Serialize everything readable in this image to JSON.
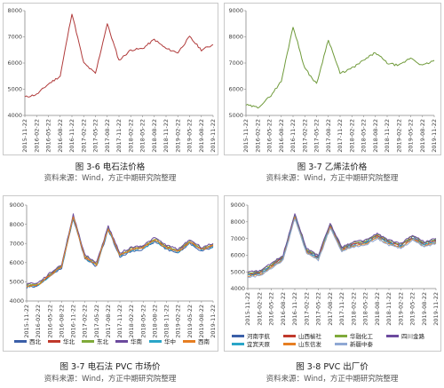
{
  "captions": {
    "c1": {
      "title": "图 3-6  电石法价格",
      "source": "资料来源：Wind，方正中期研究院整理"
    },
    "c2": {
      "title": "图 3-7  乙烯法价格",
      "source": "资料来源：Wind，方正中期研究院整理"
    },
    "c3": {
      "title": "图 3-7  电石法 PVC 市场价",
      "source": "资料来源：Wind，方正中期研究院整理"
    },
    "c4": {
      "title": "图 3-8 PVC 出厂价",
      "source": "资料来源：Wind，方正中期研究院整理"
    }
  },
  "colors": {
    "c1_line": "#b03a3a",
    "c2_line": "#6f9a3a"
  },
  "chart_data": [
    {
      "type": "line",
      "title": "",
      "ylim": [
        4000,
        8000
      ],
      "yticks": [
        4000,
        5000,
        6000,
        7000,
        8000
      ],
      "xticks": [
        "2015-11-22",
        "2016-02-22",
        "2016-05-22",
        "2016-08-22",
        "2016-11-22",
        "2017-02-22",
        "2017-05-22",
        "2017-08-22",
        "2017-11-22",
        "2018-02-22",
        "2018-05-22",
        "2018-08-22",
        "2018-11-22",
        "2019-02-22",
        "2019-05-22",
        "2019-08-22",
        "2019-11-22"
      ],
      "series": [
        {
          "values": [
            4700,
            4800,
            5200,
            5500,
            7900,
            6000,
            5600,
            7500,
            6100,
            6500,
            6550,
            6900,
            6550,
            6400,
            7000,
            6500,
            6700
          ]
        }
      ]
    },
    {
      "type": "line",
      "title": "",
      "ylim": [
        5000,
        9000
      ],
      "yticks": [
        5000,
        6000,
        7000,
        8000,
        9000
      ],
      "xticks": [
        "2015-11-22",
        "2016-02-22",
        "2016-05-22",
        "2016-08-22",
        "2016-11-22",
        "2017-02-22",
        "2017-05-22",
        "2017-08-22",
        "2017-11-22",
        "2018-02-22",
        "2018-05-22",
        "2018-08-22",
        "2018-11-22",
        "2019-02-22",
        "2019-05-22",
        "2019-08-22",
        "2019-11-22"
      ],
      "series": [
        {
          "values": [
            5400,
            5300,
            5700,
            6300,
            8400,
            6800,
            6200,
            7900,
            6600,
            6800,
            7100,
            7400,
            7000,
            6900,
            7200,
            6900,
            7100
          ]
        }
      ]
    },
    {
      "type": "line",
      "title": "",
      "ylim": [
        4000,
        9000
      ],
      "yticks": [
        4000,
        5000,
        6000,
        7000,
        8000,
        9000
      ],
      "xticks": [
        "2015-11-22",
        "2016-02-22",
        "2016-05-22",
        "2016-08-22",
        "2016-11-22",
        "2017-02-22",
        "2017-05-22",
        "2017-08-22",
        "2017-11-22",
        "2018-02-22",
        "2018-05-22",
        "2018-08-22",
        "2018-11-22",
        "2019-02-22",
        "2019-05-22",
        "2019-08-22",
        "2019-11-22"
      ],
      "series": [
        {
          "name": "西北",
          "color": "#3b5fa8",
          "values": [
            4700,
            4800,
            5300,
            5700,
            8300,
            6200,
            5800,
            7700,
            6300,
            6600,
            6700,
            7100,
            6700,
            6500,
            7000,
            6600,
            6800
          ]
        },
        {
          "name": "华北",
          "color": "#c0392b",
          "values": [
            4800,
            4850,
            5350,
            5800,
            8400,
            6300,
            5900,
            7800,
            6400,
            6700,
            6800,
            7200,
            6800,
            6600,
            7100,
            6700,
            6900
          ]
        },
        {
          "name": "东北",
          "color": "#7faa3a",
          "values": [
            4850,
            4900,
            5400,
            5850,
            8450,
            6350,
            5950,
            7850,
            6450,
            6750,
            6850,
            7250,
            6850,
            6650,
            7150,
            6750,
            6950
          ]
        },
        {
          "name": "华南",
          "color": "#6c4a9e",
          "values": [
            4900,
            4950,
            5450,
            5900,
            8500,
            6400,
            6000,
            7900,
            6500,
            6800,
            6900,
            7300,
            6900,
            6700,
            7200,
            6800,
            7000
          ]
        },
        {
          "name": "华中",
          "color": "#2aa5c8",
          "values": [
            4750,
            4820,
            5320,
            5760,
            8350,
            6250,
            5850,
            7750,
            6350,
            6650,
            6750,
            7150,
            6750,
            6550,
            7050,
            6650,
            6850
          ]
        },
        {
          "name": "西南",
          "color": "#e67e22",
          "values": [
            4780,
            4840,
            5340,
            5780,
            8380,
            6280,
            5880,
            7780,
            6380,
            6680,
            6780,
            7180,
            6780,
            6580,
            7080,
            6680,
            6880
          ]
        }
      ]
    },
    {
      "type": "line",
      "title": "",
      "ylim": [
        4000,
        9000
      ],
      "yticks": [
        4000,
        5000,
        6000,
        7000,
        8000,
        9000
      ],
      "xticks": [
        "2015-11-22",
        "2016-02-22",
        "2016-05-22",
        "2016-08-22",
        "2016-11-22",
        "2017-02-22",
        "2017-05-22",
        "2017-08-22",
        "2017-11-22",
        "2018-02-22",
        "2018-05-22",
        "2018-08-22",
        "2018-11-22",
        "2019-02-22",
        "2019-05-22",
        "2019-08-22",
        "2019-11-22"
      ],
      "series": [
        {
          "name": "河南宇航",
          "color": "#3b5fa8",
          "values": [
            4900,
            4950,
            5400,
            5900,
            8400,
            6300,
            5900,
            7800,
            6400,
            6700,
            6800,
            7200,
            6800,
            6600,
            7100,
            6700,
            6900
          ]
        },
        {
          "name": "山西榆社",
          "color": "#c0392b",
          "values": [
            4850,
            4900,
            5350,
            5850,
            8350,
            6250,
            5850,
            7750,
            6350,
            6650,
            6750,
            7150,
            6750,
            6550,
            7050,
            6650,
            6850
          ]
        },
        {
          "name": "华融化工",
          "color": "#7faa3a",
          "values": [
            4950,
            5000,
            5450,
            5950,
            8450,
            6350,
            5950,
            7850,
            6450,
            6750,
            6850,
            7250,
            6850,
            6650,
            7150,
            6750,
            6950
          ]
        },
        {
          "name": "四川金路",
          "color": "#6c4a9e",
          "values": [
            5000,
            5050,
            5500,
            6000,
            8500,
            6400,
            6000,
            7900,
            6500,
            6800,
            6900,
            7300,
            6900,
            6700,
            7200,
            6800,
            7000
          ]
        },
        {
          "name": "宜宾天原",
          "color": "#2aa5c8",
          "values": [
            4800,
            4850,
            5300,
            5800,
            8300,
            6200,
            5800,
            7700,
            6300,
            6600,
            6700,
            7100,
            6700,
            6500,
            7000,
            6600,
            6800
          ]
        },
        {
          "name": "山东信发",
          "color": "#e67e22",
          "values": [
            4750,
            4800,
            5250,
            5750,
            8250,
            6150,
            5750,
            7650,
            6250,
            6550,
            6650,
            7050,
            6650,
            6450,
            6950,
            6550,
            6750
          ]
        },
        {
          "name": "新疆中泰",
          "color": "#8fa8d4",
          "values": [
            4700,
            4750,
            5200,
            5700,
            8200,
            6100,
            5700,
            7600,
            6200,
            6500,
            6600,
            7000,
            6600,
            6400,
            6900,
            6500,
            6700
          ]
        }
      ]
    }
  ]
}
